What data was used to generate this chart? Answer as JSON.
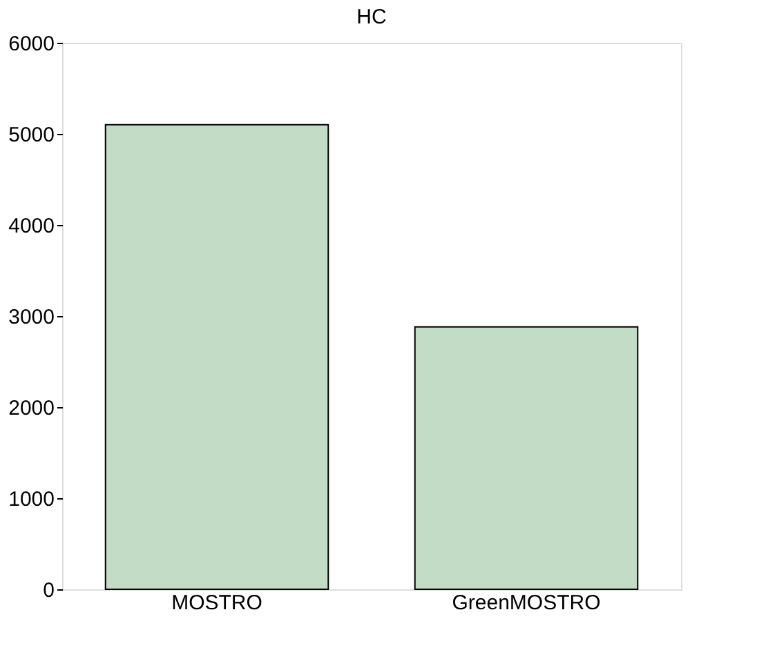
{
  "chart_data": {
    "type": "bar",
    "title": "HC",
    "categories": [
      "MOSTRO",
      "GreenMOSTRO"
    ],
    "values": [
      5100,
      2880
    ],
    "color": "#c2dcc5",
    "ylim": [
      0,
      6000
    ],
    "yticks": [
      0,
      1000,
      2000,
      3000,
      4000,
      5000,
      6000
    ],
    "grid": false
  }
}
